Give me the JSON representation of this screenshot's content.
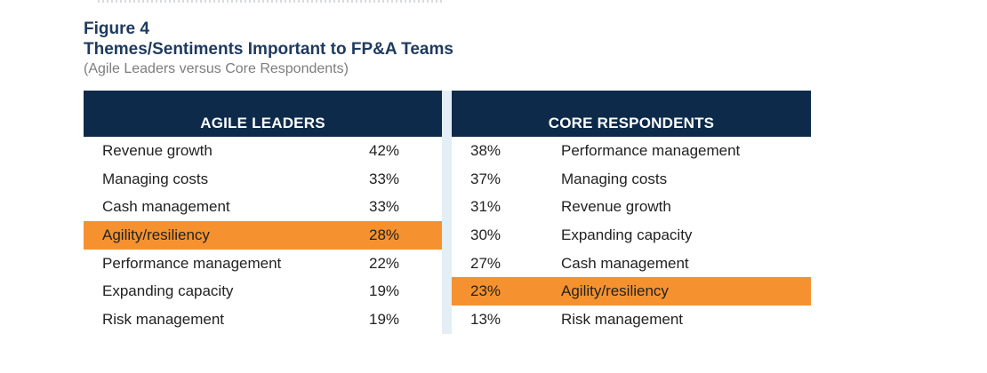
{
  "figure": {
    "label": "Figure 4",
    "title": "Themes/Sentiments Important to FP&A Teams",
    "subtitle": "(Agile Leaders versus Core Respondents)"
  },
  "colors": {
    "header_bg": "#0d2a4a",
    "highlight": "#f5922f",
    "title": "#1f3a5e",
    "divider": "#e3eef5"
  },
  "agile_leaders": {
    "header": "AGILE LEADERS",
    "rows": [
      {
        "label": "Revenue growth",
        "pct": "42%"
      },
      {
        "label": "Managing costs",
        "pct": "33%"
      },
      {
        "label": "Cash management",
        "pct": "33%"
      },
      {
        "label": "Agility/resiliency",
        "pct": "28%"
      },
      {
        "label": "Performance management",
        "pct": "22%"
      },
      {
        "label": "Expanding capacity",
        "pct": "19%"
      },
      {
        "label": "Risk management",
        "pct": "19%"
      }
    ]
  },
  "core_respondents": {
    "header": "CORE RESPONDENTS",
    "rows": [
      {
        "label": "Performance management",
        "pct": "38%"
      },
      {
        "label": "Managing costs",
        "pct": "37%"
      },
      {
        "label": "Revenue growth",
        "pct": "31%"
      },
      {
        "label": "Expanding capacity",
        "pct": "30%"
      },
      {
        "label": "Cash management",
        "pct": "27%"
      },
      {
        "label": "Agility/resiliency",
        "pct": "23%"
      },
      {
        "label": "Risk management",
        "pct": "13%"
      }
    ]
  }
}
